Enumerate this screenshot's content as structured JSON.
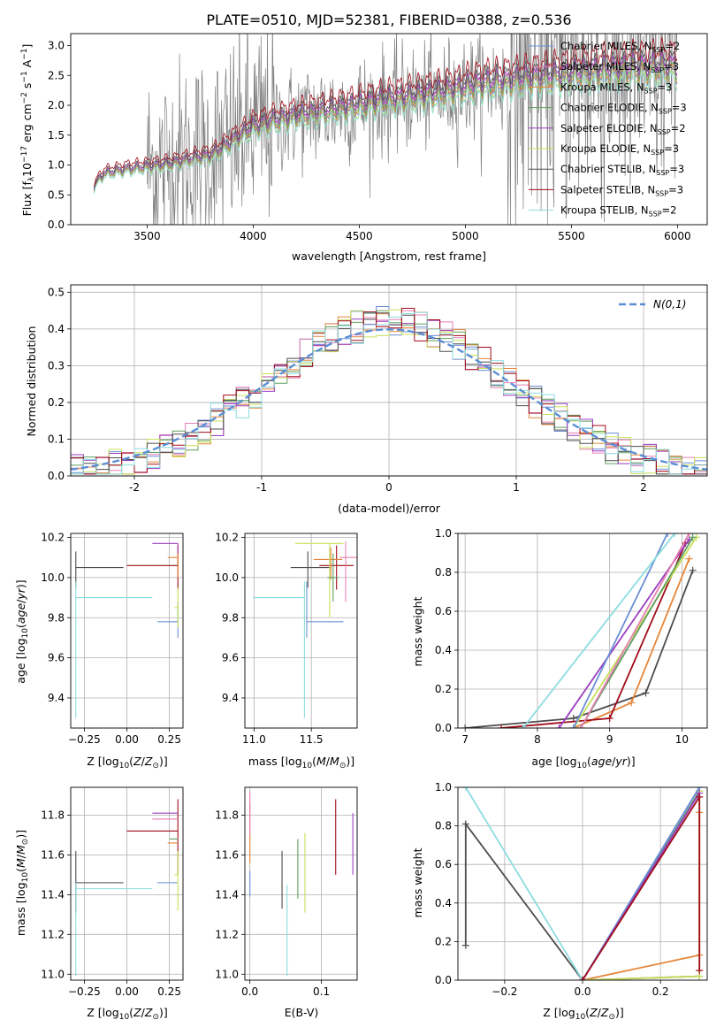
{
  "title": "PLATE=0510, MJD=52381, FIBERID=0388, z=0.536",
  "colors": {
    "Chabrier MILES": "#6a8fd4",
    "Salpeter MILES": "#e77fb2",
    "Kroupa MILES": "#e4863a",
    "Chabrier ELODIE": "#5f9e5f",
    "Salpeter ELODIE": "#9a3fc0",
    "Kroupa ELODIE": "#c8e05a",
    "Chabrier STELIB": "#4d4d4d",
    "Salpeter STELIB": "#a00d1a",
    "Kroupa STELIB": "#8cdce0",
    "data": "#808080",
    "normal": "#5b8ed6"
  },
  "legend_spectrum": [
    {
      "name": "Chabrier MILES",
      "nssp": "2"
    },
    {
      "name": "Salpeter MILES",
      "nssp": "3"
    },
    {
      "name": "Kroupa MILES",
      "nssp": "3"
    },
    {
      "name": "Chabrier ELODIE",
      "nssp": "3"
    },
    {
      "name": "Salpeter ELODIE",
      "nssp": "2"
    },
    {
      "name": "Kroupa ELODIE",
      "nssp": "3"
    },
    {
      "name": "Chabrier STELIB",
      "nssp": "3"
    },
    {
      "name": "Salpeter STELIB",
      "nssp": "3"
    },
    {
      "name": "Kroupa STELIB",
      "nssp": "2"
    }
  ],
  "chart_data": [
    {
      "id": "spectrum",
      "type": "line",
      "xlabel": "wavelength [Angstrom, rest frame]",
      "ylabel": "Flux [f_λ10^-17 erg cm^-2 s^-1 A^-1]",
      "xlim": [
        3140,
        6140
      ],
      "ylim": [
        0,
        3.2
      ],
      "xticks": [
        3500,
        4000,
        4500,
        5000,
        5500,
        6000
      ],
      "yticks": [
        0.0,
        0.5,
        1.0,
        1.5,
        2.0,
        2.5,
        3.0
      ],
      "data_range": [
        3500,
        6000
      ],
      "model_range": [
        3250,
        6000
      ],
      "model_shape": {
        "x": [
          3250,
          3270,
          3300,
          3400,
          3500,
          3600,
          3700,
          3800,
          3850,
          3900,
          3950,
          4000,
          4100,
          4200,
          4300,
          4400,
          4500,
          4600,
          4700,
          4800,
          4900,
          5000,
          5100,
          5200,
          5300,
          5400,
          5500,
          5600,
          5700,
          5800,
          5900,
          6000
        ],
        "y": [
          0.6,
          0.75,
          0.85,
          0.92,
          0.96,
          1.0,
          1.08,
          1.15,
          1.25,
          1.38,
          1.5,
          1.62,
          1.72,
          1.8,
          1.86,
          1.92,
          1.98,
          2.05,
          2.1,
          2.15,
          2.2,
          2.28,
          2.35,
          2.38,
          2.42,
          2.46,
          2.5,
          2.55,
          2.58,
          2.6,
          2.62,
          2.62
        ]
      },
      "model_scales": [
        {
          "series": "Chabrier MILES",
          "scale": 0.97
        },
        {
          "series": "Salpeter MILES",
          "scale": 1.02
        },
        {
          "series": "Kroupa MILES",
          "scale": 0.98
        },
        {
          "series": "Chabrier ELODIE",
          "scale": 1.0
        },
        {
          "series": "Salpeter ELODIE",
          "scale": 1.03
        },
        {
          "series": "Kroupa ELODIE",
          "scale": 0.94
        },
        {
          "series": "Chabrier STELIB",
          "scale": 1.06
        },
        {
          "series": "Salpeter STELIB",
          "scale": 1.12
        },
        {
          "series": "Kroupa STELIB",
          "scale": 0.93
        }
      ],
      "legend_position": "top-right"
    },
    {
      "id": "residuals",
      "type": "line",
      "xlabel": "(data-model)/error",
      "ylabel": "Normed distribution",
      "xlim": [
        -2.5,
        2.5
      ],
      "ylim": [
        0,
        0.52
      ],
      "xticks": [
        -2,
        -1,
        0,
        1,
        2
      ],
      "yticks": [
        0.0,
        0.1,
        0.2,
        0.3,
        0.4,
        0.5
      ],
      "hist_bins": [
        -2.5,
        2.5,
        50
      ],
      "series_legend": "N(0,1)",
      "legend_position": "top-right"
    },
    {
      "id": "age-vs-Z",
      "type": "scatter",
      "xlabel": "Z [log10(Z/Z⊙)]",
      "ylabel": "age [log10(age/yr)]",
      "xlim": [
        -0.33,
        0.33
      ],
      "ylim": [
        9.25,
        10.22
      ],
      "xticks": [
        -0.25,
        0.0,
        0.25
      ],
      "xticklabels": [
        "−0.25",
        "0.00",
        "0.25"
      ],
      "yticks": [
        9.4,
        9.6,
        9.8,
        10.0,
        10.2
      ],
      "errorbars": [
        {
          "series": "Chabrier STELIB",
          "x": -0.3,
          "xerr": [
            0.0,
            0.28
          ],
          "y": 10.05,
          "yerr": [
            0.1,
            0.08
          ]
        },
        {
          "series": "Kroupa STELIB",
          "x": -0.3,
          "xerr": [
            0.0,
            0.45
          ],
          "y": 9.9,
          "yerr": [
            0.6,
            0.08
          ]
        },
        {
          "series": "Salpeter STELIB",
          "x": 0.3,
          "xerr": [
            0.3,
            0.0
          ],
          "y": 10.06,
          "yerr": [
            0.12,
            0.1
          ]
        },
        {
          "series": "Chabrier MILES",
          "x": 0.3,
          "xerr": [
            0.12,
            0.0
          ],
          "y": 9.78,
          "yerr": [
            0.08,
            0.1
          ]
        },
        {
          "series": "Kroupa MILES",
          "x": 0.3,
          "xerr": [
            0.06,
            0.0
          ],
          "y": 10.1,
          "yerr": [
            0.1,
            0.06
          ]
        },
        {
          "series": "Salpeter ELODIE",
          "x": 0.3,
          "xerr": [
            0.15,
            0.0
          ],
          "y": 10.17,
          "yerr": [
            0.05,
            0.0
          ]
        },
        {
          "series": "Kroupa ELODIE",
          "x": 0.3,
          "xerr": [
            0.02,
            0.0
          ],
          "y": 9.85,
          "yerr": [
            0.1,
            0.1
          ]
        }
      ]
    },
    {
      "id": "age-vs-mass",
      "type": "scatter",
      "xlabel": "mass [log10(M/M⊙)]",
      "ylabel": "",
      "xlim": [
        10.92,
        11.9
      ],
      "ylim": [
        9.25,
        10.22
      ],
      "xticks": [
        11.0,
        11.5
      ],
      "xticklabels": [
        "11.0",
        "11.5"
      ],
      "yticks": [
        9.4,
        9.6,
        9.8,
        10.0,
        10.2
      ],
      "errorbars": [
        {
          "series": "Kroupa STELIB",
          "x": 11.44,
          "xerr": [
            0.45,
            0.0
          ],
          "y": 9.9,
          "yerr": [
            0.6,
            0.08
          ]
        },
        {
          "series": "Chabrier STELIB",
          "x": 11.47,
          "xerr": [
            0.15,
            0.2
          ],
          "y": 10.05,
          "yerr": [
            0.1,
            0.08
          ]
        },
        {
          "series": "Chabrier MILES",
          "x": 11.46,
          "xerr": [
            0.0,
            0.32
          ],
          "y": 9.78,
          "yerr": [
            0.08,
            0.2
          ]
        },
        {
          "series": "Salpeter STELIB",
          "x": 11.72,
          "xerr": [
            0.15,
            0.15
          ],
          "y": 10.06,
          "yerr": [
            0.12,
            0.1
          ]
        },
        {
          "series": "Kroupa MILES",
          "x": 11.67,
          "xerr": [
            0.15,
            0.1
          ],
          "y": 10.09,
          "yerr": [
            0.1,
            0.06
          ]
        },
        {
          "series": "Salpeter MILES",
          "x": 11.8,
          "xerr": [
            0.05,
            0.1
          ],
          "y": 10.1,
          "yerr": [
            0.22,
            0.08
          ]
        },
        {
          "series": "Kroupa ELODIE",
          "x": 11.66,
          "xerr": [
            0.3,
            0.12
          ],
          "y": 10.17,
          "yerr": [
            0.37,
            0.0
          ]
        },
        {
          "series": "Chabrier ELODIE",
          "x": 11.69,
          "xerr": [
            0.05,
            0.05
          ],
          "y": 10.0,
          "yerr": [
            0.12,
            0.12
          ]
        }
      ]
    },
    {
      "id": "weight-vs-age",
      "type": "line",
      "xlabel": "age [log10(age/yr)]",
      "ylabel": "mass weight",
      "xlim": [
        6.9,
        10.35
      ],
      "ylim": [
        0,
        1.0
      ],
      "xticks": [
        7,
        8,
        9,
        10
      ],
      "yticks": [
        0.0,
        0.2,
        0.4,
        0.6,
        0.8,
        1.0
      ],
      "series": [
        {
          "name": "Chabrier STELIB",
          "x": [
            7.0,
            8.5,
            9.5,
            10.15
          ],
          "y": [
            0.0,
            0.05,
            0.18,
            0.81
          ]
        },
        {
          "name": "Kroupa MILES",
          "x": [
            8.5,
            9.3,
            10.1
          ],
          "y": [
            0.0,
            0.13,
            0.87
          ]
        },
        {
          "name": "Salpeter STELIB",
          "x": [
            7.5,
            9.0,
            10.05
          ],
          "y": [
            0.0,
            0.05,
            0.95
          ]
        },
        {
          "name": "Salpeter ELODIE",
          "x": [
            8.3,
            10.1
          ],
          "y": [
            0.0,
            0.97
          ]
        },
        {
          "name": "Kroupa ELODIE",
          "x": [
            8.5,
            10.2
          ],
          "y": [
            0.0,
            0.98
          ]
        },
        {
          "name": "Chabrier ELODIE",
          "x": [
            8.6,
            10.15
          ],
          "y": [
            0.0,
            0.98
          ]
        },
        {
          "name": "Chabrier MILES",
          "x": [
            8.5,
            9.8
          ],
          "y": [
            0.0,
            1.0
          ]
        },
        {
          "name": "Salpeter MILES",
          "x": [
            8.6,
            10.1
          ],
          "y": [
            0.0,
            1.0
          ]
        },
        {
          "name": "Kroupa STELIB",
          "x": [
            7.8,
            9.9
          ],
          "y": [
            0.0,
            1.0
          ]
        }
      ]
    },
    {
      "id": "mass-vs-Z",
      "type": "scatter",
      "xlabel": "Z [log10(Z/Z⊙)]",
      "ylabel": "mass [log10(M/M⊙)]",
      "xlim": [
        -0.33,
        0.33
      ],
      "ylim": [
        10.97,
        11.94
      ],
      "xticks": [
        -0.25,
        0.0,
        0.25
      ],
      "xticklabels": [
        "−0.25",
        "0.00",
        "0.25"
      ],
      "yticks": [
        11.0,
        11.2,
        11.4,
        11.6,
        11.8
      ],
      "errorbars": [
        {
          "series": "Chabrier STELIB",
          "x": -0.3,
          "xerr": [
            0.0,
            0.28
          ],
          "y": 11.46,
          "yerr": [
            0.15,
            0.16
          ]
        },
        {
          "series": "Kroupa STELIB",
          "x": -0.3,
          "xerr": [
            0.0,
            0.45
          ],
          "y": 11.43,
          "yerr": [
            0.44,
            0.03
          ]
        },
        {
          "series": "Salpeter STELIB",
          "x": 0.3,
          "xerr": [
            0.3,
            0.0
          ],
          "y": 11.72,
          "yerr": [
            0.22,
            0.16
          ]
        },
        {
          "series": "Chabrier MILES",
          "x": 0.3,
          "xerr": [
            0.12,
            0.0
          ],
          "y": 11.46,
          "yerr": [
            0.0,
            0.0
          ]
        },
        {
          "series": "Kroupa MILES",
          "x": 0.3,
          "xerr": [
            0.06,
            0.0
          ],
          "y": 11.66,
          "yerr": [
            0.0,
            0.0
          ]
        },
        {
          "series": "Salpeter ELODIE",
          "x": 0.3,
          "xerr": [
            0.15,
            0.0
          ],
          "y": 11.81,
          "yerr": [
            0.0,
            0.0
          ]
        },
        {
          "series": "Salpeter MILES",
          "x": 0.3,
          "xerr": [
            0.15,
            0.0
          ],
          "y": 11.78,
          "yerr": [
            0.0,
            0.0
          ]
        },
        {
          "series": "Chabrier ELODIE",
          "x": 0.3,
          "xerr": [
            0.05,
            0.0
          ],
          "y": 11.68,
          "yerr": [
            0.0,
            0.0
          ]
        },
        {
          "series": "Kroupa ELODIE",
          "x": 0.3,
          "xerr": [
            0.02,
            0.0
          ],
          "y": 11.5,
          "yerr": [
            0.18,
            0.12
          ]
        }
      ]
    },
    {
      "id": "mass-vs-EBV",
      "type": "scatter",
      "xlabel": "E(B-V)",
      "ylabel": "",
      "xlim": [
        -0.007,
        0.15
      ],
      "ylim": [
        10.97,
        11.94
      ],
      "xticks": [
        0.0,
        0.1
      ],
      "xticklabels": [
        "0.0",
        "0.1"
      ],
      "yticks": [
        11.0,
        11.2,
        11.4,
        11.6,
        11.8
      ],
      "errorbars": [
        {
          "series": "Chabrier MILES",
          "x": 0.0,
          "yerr_range": [
            11.39,
            11.52
          ]
        },
        {
          "series": "Kroupa MILES",
          "x": 0.0,
          "yerr_range": [
            11.56,
            11.86
          ]
        },
        {
          "series": "Salpeter MILES",
          "x": 0.0,
          "yerr_range": [
            11.7,
            11.92
          ]
        },
        {
          "series": "Chabrier STELIB",
          "x": 0.045,
          "yerr_range": [
            11.33,
            11.62
          ]
        },
        {
          "series": "Kroupa STELIB",
          "x": 0.052,
          "yerr_range": [
            10.99,
            11.45
          ]
        },
        {
          "series": "Chabrier ELODIE",
          "x": 0.067,
          "yerr_range": [
            11.38,
            11.68
          ]
        },
        {
          "series": "Kroupa ELODIE",
          "x": 0.077,
          "yerr_range": [
            11.31,
            11.71
          ]
        },
        {
          "series": "Salpeter STELIB",
          "x": 0.12,
          "yerr_range": [
            11.5,
            11.88
          ]
        },
        {
          "series": "Salpeter ELODIE",
          "x": 0.144,
          "yerr_range": [
            11.5,
            11.81
          ]
        }
      ]
    },
    {
      "id": "weight-vs-Z",
      "type": "line",
      "xlabel": "Z [log10(Z/Z⊙)]",
      "ylabel": "mass weight",
      "xlim": [
        -0.32,
        0.32
      ],
      "ylim": [
        0,
        1.0
      ],
      "xticks": [
        -0.2,
        0.0,
        0.2
      ],
      "xticklabels": [
        "−0.2",
        "0.0",
        "0.2"
      ],
      "yticks": [
        0.0,
        0.2,
        0.4,
        0.6,
        0.8,
        1.0
      ],
      "series": [
        {
          "name": "Chabrier STELIB",
          "x": [
            -0.3,
            -0.3,
            0.0,
            0.3
          ],
          "y": [
            0.18,
            0.81,
            0.0,
            0.02
          ]
        },
        {
          "name": "Kroupa STELIB",
          "x": [
            -0.3,
            0.0,
            0.3
          ],
          "y": [
            1.0,
            0.0,
            1.0
          ]
        },
        {
          "name": "Kroupa MILES",
          "x": [
            0.0,
            0.3,
            0.3
          ],
          "y": [
            0.0,
            0.13,
            0.87
          ]
        },
        {
          "name": "Chabrier ELODIE",
          "x": [
            0.0,
            0.3
          ],
          "y": [
            0.0,
            0.98
          ]
        },
        {
          "name": "Kroupa ELODIE",
          "x": [
            0.0,
            0.3,
            0.3
          ],
          "y": [
            0.0,
            0.02,
            0.98
          ]
        },
        {
          "name": "Chabrier MILES",
          "x": [
            0.0,
            0.3
          ],
          "y": [
            0.0,
            1.0
          ]
        },
        {
          "name": "Salpeter ELODIE",
          "x": [
            0.0,
            0.3
          ],
          "y": [
            0.0,
            0.97
          ]
        },
        {
          "name": "Salpeter STELIB",
          "x": [
            0.0,
            0.3,
            0.3
          ],
          "y": [
            0.0,
            0.95,
            0.05
          ]
        }
      ]
    }
  ]
}
